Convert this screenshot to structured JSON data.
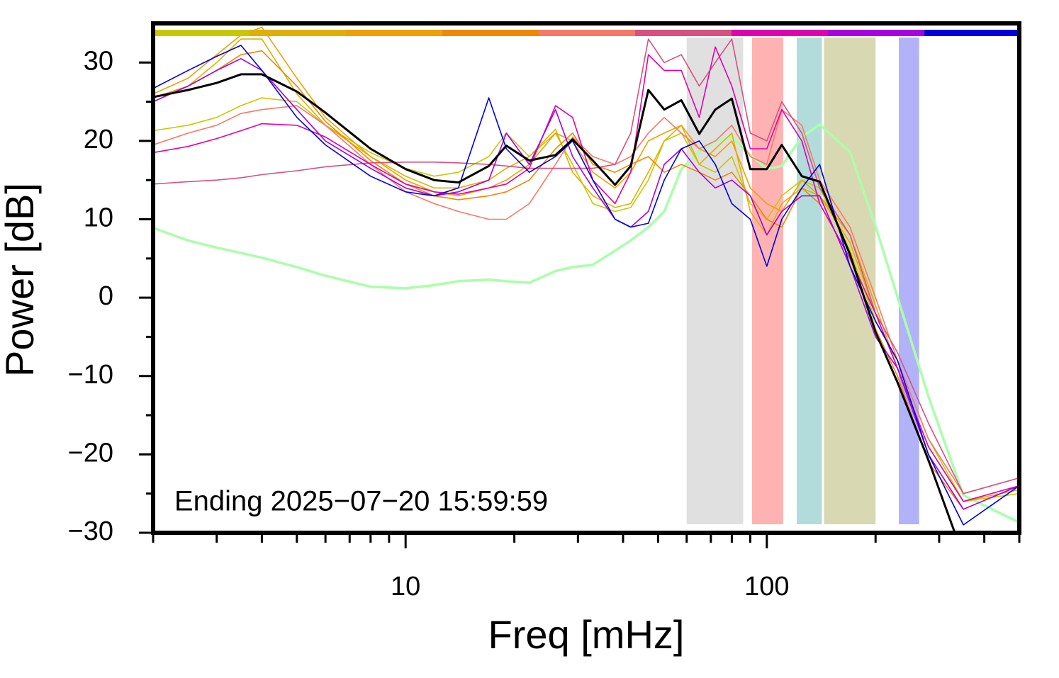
{
  "chart_data": {
    "type": "line",
    "annotation": "Ending 2025−07−20 15:59:59",
    "x_label": "Freq [mHz]",
    "y_label": "Power [dB]",
    "log_x": true,
    "xlim": [
      2,
      500
    ],
    "ylim": [
      -30,
      35
    ],
    "xticks": [
      10,
      100
    ],
    "xminorticks": [
      2,
      3,
      4,
      5,
      6,
      7,
      8,
      9,
      20,
      30,
      40,
      50,
      60,
      70,
      80,
      90,
      200,
      300,
      400,
      500
    ],
    "yticks": [
      {
        "value": -30,
        "label": "−30"
      },
      {
        "value": -20,
        "label": "−20"
      },
      {
        "value": -10,
        "label": "−10"
      },
      0,
      10,
      20,
      30
    ],
    "yminorticks": [
      -25,
      -15,
      -5,
      5,
      15,
      25
    ],
    "bands": [
      {
        "x": [
          60,
          86
        ],
        "color": "#e0e0e0"
      },
      {
        "x": [
          91,
          111
        ],
        "color": "#ffb2b2"
      },
      {
        "x": [
          121,
          142
        ],
        "color": "#b2dcdc"
      },
      {
        "x": [
          144,
          200
        ],
        "color": "#d8d8b2"
      },
      {
        "x": [
          232,
          264
        ],
        "color": "#b2b2f8"
      }
    ],
    "x": [
      2,
      2.5,
      3,
      3.5,
      4,
      5,
      6,
      8,
      10,
      12,
      14,
      17,
      19,
      22,
      26,
      29,
      33,
      38,
      42,
      47,
      52,
      58,
      65,
      72,
      80,
      90,
      100,
      110,
      125,
      140,
      170,
      200,
      230,
      280,
      350,
      500
    ],
    "series": [
      {
        "color": "#aaffaa",
        "linewidth": 3.5,
        "values": [
          8.9,
          7.3,
          6.4,
          5.7,
          5.1,
          3.9,
          2.8,
          1.4,
          1.2,
          1.6,
          2.1,
          2.3,
          2.1,
          1.9,
          3.4,
          3.9,
          4.2,
          6.0,
          7.3,
          9.0,
          11,
          16.4,
          18.6,
          20,
          20.5,
          18.2,
          16.4,
          16.8,
          20.5,
          22.1,
          18.6,
          9.1,
          0.1,
          -12.6,
          -25.2,
          -28.7
        ]
      },
      {
        "color": "#c8c800",
        "linewidth": 1.6,
        "values": [
          21.3,
          22,
          23,
          24.5,
          25.5,
          25,
          22,
          18.5,
          16.5,
          15.5,
          16,
          18,
          21,
          18,
          21,
          17,
          12,
          11,
          11.5,
          15,
          20,
          21,
          17,
          16,
          18,
          12,
          10,
          13,
          15,
          14,
          6,
          -3,
          -8,
          -18,
          -26,
          -25
        ]
      },
      {
        "color": "#e0b000",
        "linewidth": 1.6,
        "values": [
          25,
          27,
          30,
          33,
          33,
          26,
          22,
          18,
          15.5,
          14,
          14,
          15,
          16.5,
          18,
          21.5,
          16,
          13,
          11.5,
          12,
          16,
          20,
          22,
          17,
          19,
          21,
          11,
          8,
          12,
          14,
          13,
          7,
          -2,
          -9,
          -19,
          -26,
          -24.5
        ]
      },
      {
        "color": "#f0a000",
        "linewidth": 1.6,
        "values": [
          26,
          28,
          31,
          33.5,
          34.5,
          28,
          23,
          18,
          15,
          13.5,
          13,
          14,
          15,
          17,
          21,
          20,
          16,
          14,
          16,
          20,
          21,
          22,
          19,
          18,
          20,
          14,
          12,
          11,
          15,
          13,
          8,
          -1,
          -9,
          -20,
          -27,
          -24
        ]
      },
      {
        "color": "#f08800",
        "linewidth": 1.6,
        "values": [
          25.5,
          27,
          29,
          31,
          31.5,
          27,
          22.5,
          17.5,
          14.5,
          13,
          12.5,
          13,
          13.5,
          15,
          19,
          21,
          17,
          16,
          17,
          18,
          16,
          17,
          16,
          15,
          16,
          13,
          10,
          9,
          14,
          12,
          5,
          -4,
          -10,
          -21,
          -27,
          -24
        ]
      },
      {
        "color": "#f87868",
        "linewidth": 1.6,
        "values": [
          19.5,
          21,
          22,
          23.5,
          24,
          24.5,
          22,
          17,
          13.5,
          12,
          11,
          10,
          10,
          12,
          17,
          20.5,
          18,
          17,
          18,
          21,
          23,
          21,
          19,
          20,
          22,
          18,
          17,
          24,
          22,
          15,
          9,
          0,
          -8,
          -18,
          -25,
          -23
        ]
      },
      {
        "color": "#d85080",
        "linewidth": 1.6,
        "values": [
          14.5,
          14.8,
          15,
          15.3,
          15.7,
          16.2,
          16.7,
          17.2,
          17.3,
          17.3,
          17.2,
          17,
          16.8,
          16.5,
          16.5,
          16.5,
          16.5,
          17,
          21,
          33,
          30,
          31,
          27,
          30,
          33,
          21,
          20,
          25,
          21,
          14,
          8,
          -2,
          -7,
          -16,
          -25,
          -23
        ]
      },
      {
        "color": "#e000b0",
        "linewidth": 1.6,
        "values": [
          18.5,
          19.3,
          20.3,
          21.3,
          22.2,
          22,
          20.5,
          17,
          14.5,
          13.5,
          13.2,
          14,
          14.5,
          16.5,
          24.5,
          23,
          15,
          12,
          16,
          31,
          29,
          29,
          23,
          32,
          27,
          19,
          19,
          24,
          20,
          12,
          5,
          -2,
          -9,
          -19,
          -26,
          -24
        ]
      },
      {
        "color": "#a800e0",
        "linewidth": 1.6,
        "values": [
          25,
          27,
          29,
          30.5,
          29,
          24,
          20,
          16.5,
          14,
          13,
          13.5,
          15,
          21,
          17,
          24,
          18,
          14,
          10,
          9,
          11,
          17,
          19,
          16,
          14,
          15,
          13,
          8,
          11,
          13,
          13,
          4,
          -5,
          -9,
          -20,
          -27,
          -24
        ]
      },
      {
        "color": "#0000e0",
        "linewidth": 1.6,
        "values": [
          26.7,
          29,
          30.8,
          32.2,
          29,
          23,
          19.5,
          15.5,
          13.5,
          13,
          14,
          25.5,
          19,
          16,
          18,
          20,
          15,
          10,
          9,
          9.5,
          15,
          19,
          20,
          17,
          12,
          10,
          4,
          10,
          14,
          17,
          4,
          -3,
          -8,
          -20,
          -29,
          -24
        ]
      },
      {
        "color": "#000000",
        "linewidth": 3,
        "values": [
          25.6,
          26.5,
          27.4,
          28.5,
          28.5,
          26.3,
          23.6,
          19,
          16.4,
          15,
          14.7,
          16.8,
          19.4,
          17.5,
          18.2,
          20.2,
          17.5,
          14.4,
          16.8,
          26.5,
          24,
          25.2,
          20.9,
          24,
          25.4,
          16.4,
          16.4,
          19.5,
          15.5,
          14.8,
          5.5,
          -4.4,
          -10.8,
          -20.7,
          -33,
          null
        ]
      }
    ]
  }
}
